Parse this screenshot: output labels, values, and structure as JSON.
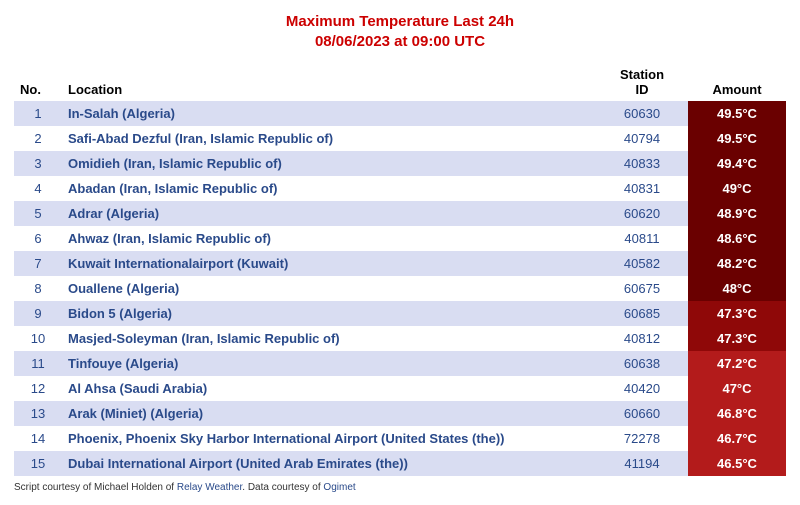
{
  "header": {
    "title_line1": "Maximum Temperature Last 24h",
    "title_line2": "08/06/2023 at 09:00 UTC"
  },
  "table": {
    "columns": {
      "no": "No.",
      "location": "Location",
      "station_id": "Station\nID",
      "amount": "Amount"
    },
    "row_bg_odd": "#d9ddf2",
    "row_bg_even": "#ffffff",
    "link_color": "#2a4a8a",
    "amount_colors": {
      "high": "#6a0000",
      "mid": "#8f0808",
      "low": "#b31b1b"
    },
    "rows": [
      {
        "no": 1,
        "location": "In-Salah (Algeria)",
        "station_id": "60630",
        "amount": "49.5°C",
        "heat": "high"
      },
      {
        "no": 2,
        "location": "Safi-Abad Dezful (Iran, Islamic Republic of)",
        "station_id": "40794",
        "amount": "49.5°C",
        "heat": "high"
      },
      {
        "no": 3,
        "location": "Omidieh (Iran, Islamic Republic of)",
        "station_id": "40833",
        "amount": "49.4°C",
        "heat": "high"
      },
      {
        "no": 4,
        "location": "Abadan (Iran, Islamic Republic of)",
        "station_id": "40831",
        "amount": "49°C",
        "heat": "high"
      },
      {
        "no": 5,
        "location": "Adrar (Algeria)",
        "station_id": "60620",
        "amount": "48.9°C",
        "heat": "high"
      },
      {
        "no": 6,
        "location": "Ahwaz (Iran, Islamic Republic of)",
        "station_id": "40811",
        "amount": "48.6°C",
        "heat": "high"
      },
      {
        "no": 7,
        "location": "Kuwait Internationalairport (Kuwait)",
        "station_id": "40582",
        "amount": "48.2°C",
        "heat": "high"
      },
      {
        "no": 8,
        "location": "Ouallene (Algeria)",
        "station_id": "60675",
        "amount": "48°C",
        "heat": "high"
      },
      {
        "no": 9,
        "location": "Bidon 5 (Algeria)",
        "station_id": "60685",
        "amount": "47.3°C",
        "heat": "mid"
      },
      {
        "no": 10,
        "location": "Masjed-Soleyman (Iran, Islamic Republic of)",
        "station_id": "40812",
        "amount": "47.3°C",
        "heat": "mid"
      },
      {
        "no": 11,
        "location": "Tinfouye (Algeria)",
        "station_id": "60638",
        "amount": "47.2°C",
        "heat": "low"
      },
      {
        "no": 12,
        "location": "Al Ahsa (Saudi Arabia)",
        "station_id": "40420",
        "amount": "47°C",
        "heat": "low"
      },
      {
        "no": 13,
        "location": "Arak (Miniet) (Algeria)",
        "station_id": "60660",
        "amount": "46.8°C",
        "heat": "low"
      },
      {
        "no": 14,
        "location": "Phoenix, Phoenix Sky Harbor International Airport (United States (the))",
        "station_id": "72278",
        "amount": "46.7°C",
        "heat": "low"
      },
      {
        "no": 15,
        "location": "Dubai International Airport (United Arab Emirates (the))",
        "station_id": "41194",
        "amount": "46.5°C",
        "heat": "low"
      }
    ]
  },
  "footer": {
    "prefix_script": "Script courtesy of  Michael Holden of ",
    "script_link": "Relay Weather",
    "data_prefix": ". Data courtesy of ",
    "data_link": "Ogimet"
  }
}
